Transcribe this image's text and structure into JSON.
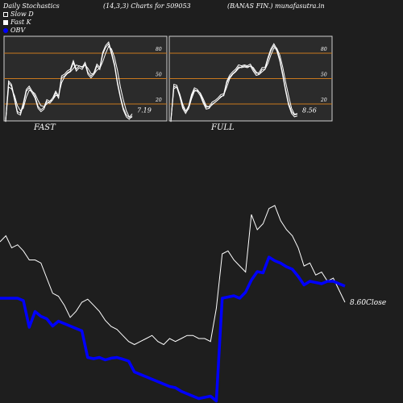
{
  "header": {
    "title": "Daily Stochastics",
    "params": "(14,3,3) Charts for 509053",
    "company": "(BANAS FIN.) munafasutra.in"
  },
  "legend": [
    {
      "label": "Slow  D",
      "marker": "outline-square"
    },
    {
      "label": "Fast K",
      "marker": "filled-square"
    },
    {
      "label": "OBV",
      "marker": "blue-dot"
    }
  ],
  "colors": {
    "background": "#1e1e1e",
    "panel": "#2b2b2b",
    "level_line": "#c8781e",
    "stoch_line": "#ffffff",
    "close_line": "#ffffff",
    "obv_line": "#0000ff"
  },
  "chart_data": [
    {
      "type": "line",
      "name": "fast-stochastics",
      "title": "FAST",
      "ylim": [
        0,
        100
      ],
      "levels": [
        20,
        50,
        80
      ],
      "level_labels": [
        "20",
        "50",
        "80"
      ],
      "last_label": "7.19",
      "series": [
        {
          "name": "Slow  D",
          "values": [
            0,
            40,
            38,
            30,
            18,
            12,
            15,
            28,
            36,
            35,
            32,
            24,
            18,
            17,
            20,
            23,
            25,
            30,
            30,
            45,
            52,
            56,
            58,
            62,
            66,
            65,
            64,
            66,
            62,
            56,
            55,
            60,
            62,
            70,
            80,
            88,
            85,
            75,
            60,
            40,
            25,
            12,
            5,
            4
          ]
        },
        {
          "name": "Fast K",
          "values": [
            0,
            46,
            42,
            26,
            10,
            8,
            20,
            36,
            40,
            34,
            28,
            16,
            12,
            15,
            24,
            22,
            26,
            34,
            28,
            52,
            54,
            58,
            60,
            70,
            60,
            64,
            62,
            68,
            56,
            52,
            56,
            66,
            62,
            80,
            88,
            92,
            80,
            66,
            45,
            28,
            14,
            6,
            3,
            7.19
          ]
        }
      ]
    },
    {
      "type": "line",
      "name": "full-stochastics",
      "title": "FULL",
      "ylim": [
        0,
        100
      ],
      "levels": [
        20,
        50,
        80
      ],
      "level_labels": [
        "20",
        "50",
        "80"
      ],
      "last_label": "8.56",
      "series": [
        {
          "name": "Slow  D",
          "values": [
            0,
            38,
            40,
            32,
            20,
            12,
            14,
            26,
            35,
            36,
            33,
            26,
            18,
            16,
            19,
            22,
            25,
            28,
            31,
            40,
            50,
            55,
            58,
            62,
            64,
            65,
            64,
            65,
            63,
            58,
            55,
            58,
            61,
            68,
            78,
            86,
            86,
            78,
            64,
            46,
            30,
            15,
            8,
            8.56
          ]
        },
        {
          "name": "Fast K",
          "values": [
            0,
            42,
            41,
            30,
            16,
            10,
            16,
            30,
            38,
            36,
            31,
            22,
            15,
            16,
            21,
            23,
            26,
            30,
            31,
            46,
            53,
            57,
            60,
            65,
            64,
            65,
            64,
            66,
            60,
            55,
            56,
            62,
            62,
            74,
            84,
            90,
            84,
            72,
            55,
            36,
            20,
            10,
            6,
            7
          ]
        }
      ]
    },
    {
      "type": "line",
      "name": "price-obv",
      "close_label": "8.60Close",
      "series": [
        {
          "name": "Close",
          "values": [
            9.6,
            9.7,
            9.5,
            9.55,
            9.45,
            9.3,
            9.3,
            9.25,
            9.0,
            8.75,
            8.7,
            8.55,
            8.35,
            8.45,
            8.6,
            8.65,
            8.55,
            8.45,
            8.3,
            8.2,
            8.15,
            8.05,
            7.95,
            7.9,
            7.95,
            8.0,
            8.05,
            7.95,
            7.9,
            8.0,
            7.95,
            8.0,
            8.05,
            8.05,
            8.0,
            8.0,
            7.95,
            8.5,
            9.4,
            9.45,
            9.3,
            9.2,
            9.1,
            10.05,
            9.8,
            9.9,
            10.15,
            10.2,
            9.95,
            9.8,
            9.7,
            9.5,
            9.2,
            9.25,
            9.05,
            9.1,
            8.95,
            9.0,
            8.8,
            8.6
          ]
        },
        {
          "name": "OBV",
          "values": [
            -150,
            -150,
            -150,
            -150,
            -160,
            -270,
            -205,
            -225,
            -235,
            -265,
            -245,
            -255,
            -265,
            -275,
            -285,
            -395,
            -400,
            -395,
            -405,
            -398,
            -395,
            -402,
            -410,
            -455,
            -465,
            -475,
            -485,
            -495,
            -505,
            -515,
            -520,
            -535,
            -545,
            -555,
            -565,
            -560,
            -555,
            -575,
            -150,
            -145,
            -140,
            -150,
            -125,
            -75,
            -40,
            -45,
            20,
            5,
            -5,
            -20,
            -30,
            -60,
            -95,
            -80,
            -85,
            -90,
            -80,
            -80,
            -90,
            -100
          ]
        }
      ]
    }
  ]
}
